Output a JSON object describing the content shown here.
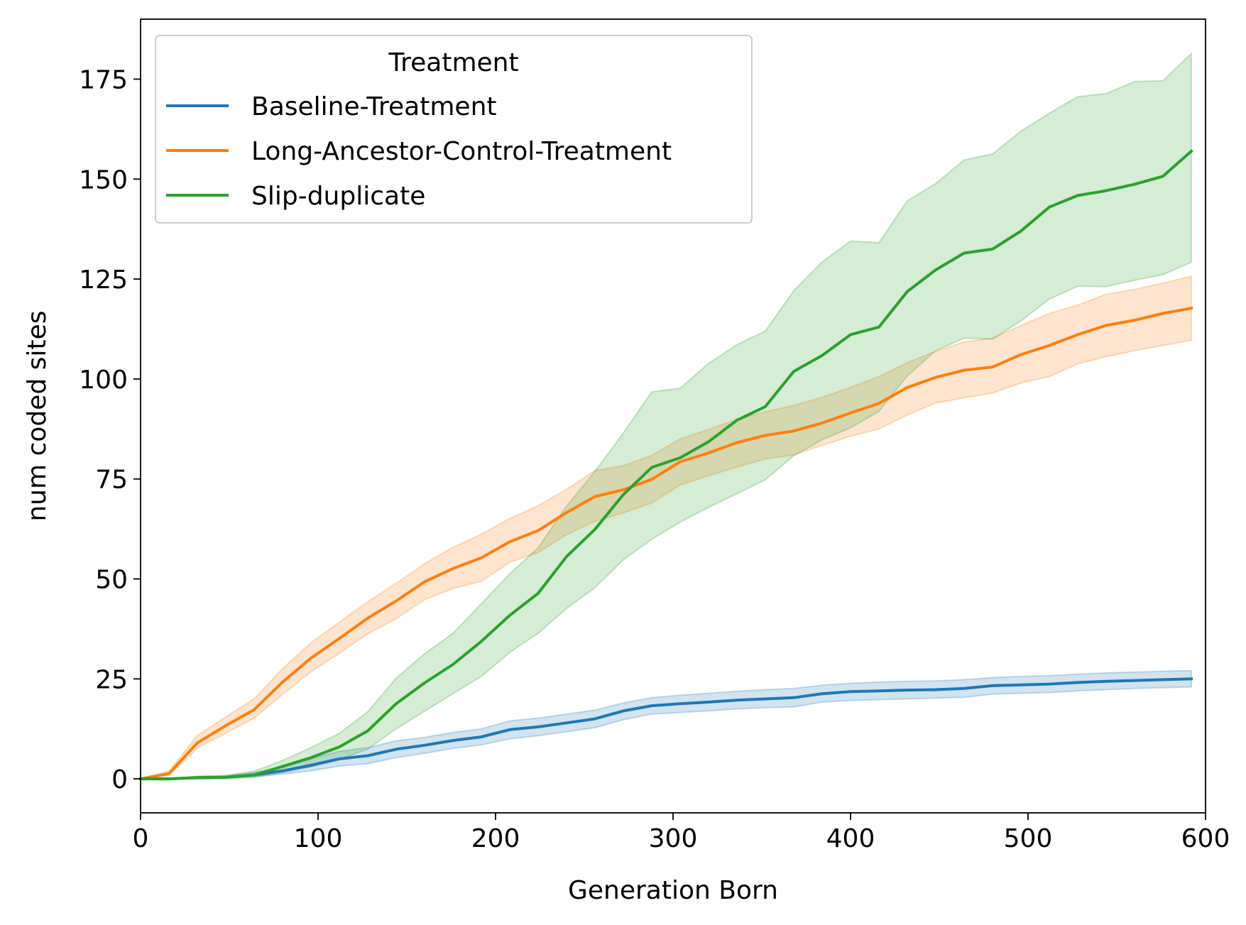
{
  "chart_data": {
    "type": "line",
    "xlabel": "Generation Born",
    "ylabel": "num coded sites",
    "xlim": [
      0,
      600
    ],
    "ylim": [
      -8.5,
      190
    ],
    "xticks": [
      0,
      100,
      200,
      300,
      400,
      500,
      600
    ],
    "yticks": [
      0,
      25,
      50,
      75,
      100,
      125,
      150,
      175
    ],
    "grid": false,
    "legend": {
      "title": "Treatment",
      "position": "top-left"
    },
    "x": [
      0,
      16,
      32,
      48,
      64,
      80,
      96,
      112,
      128,
      144,
      160,
      176,
      192,
      208,
      224,
      240,
      256,
      272,
      288,
      304,
      320,
      336,
      352,
      368,
      384,
      400,
      416,
      432,
      448,
      464,
      480,
      496,
      512,
      528,
      544,
      560,
      576,
      592
    ],
    "series": [
      {
        "name": "Baseline-Treatment",
        "color": "#1f77b4",
        "values": [
          0,
          0,
          0.3,
          0.4,
          1.0,
          2.0,
          3.4,
          5.0,
          5.8,
          7.4,
          8.4,
          9.6,
          10.5,
          12.3,
          13.0,
          14.0,
          15.0,
          17.0,
          18.3,
          18.8,
          19.2,
          19.7,
          20.0,
          20.3,
          21.3,
          21.8,
          22.0,
          22.2,
          22.3,
          22.6,
          23.3,
          23.5,
          23.7,
          24.1,
          24.4,
          24.6,
          24.8,
          25.0
        ],
        "ci_lower": [
          0,
          0,
          0,
          0.1,
          0.5,
          1.2,
          2.0,
          3.2,
          3.8,
          5.3,
          6.4,
          7.6,
          8.5,
          10.0,
          10.8,
          11.8,
          12.8,
          14.8,
          16.2,
          16.6,
          17.0,
          17.5,
          17.8,
          18.0,
          19.2,
          19.6,
          19.8,
          20.0,
          20.2,
          20.4,
          21.2,
          21.4,
          21.6,
          22.0,
          22.3,
          22.6,
          22.8,
          23.0
        ],
        "ci_upper": [
          0,
          0,
          0.6,
          0.8,
          1.6,
          2.9,
          5.0,
          6.9,
          7.8,
          9.5,
          10.4,
          11.6,
          12.5,
          14.5,
          15.2,
          16.2,
          17.2,
          19.0,
          20.3,
          20.9,
          21.4,
          21.9,
          22.3,
          22.6,
          23.4,
          23.9,
          24.2,
          24.4,
          24.5,
          24.8,
          25.3,
          25.6,
          25.8,
          26.2,
          26.5,
          26.7,
          26.9,
          27.1
        ]
      },
      {
        "name": "Long-Ancestor-Control-Treatment",
        "color": "#ff7f0e",
        "values": [
          0,
          1.3,
          9.0,
          13.3,
          17.3,
          24.2,
          30.2,
          35.1,
          40.2,
          44.5,
          49.3,
          52.6,
          55.3,
          59.3,
          62.1,
          66.6,
          70.6,
          72.3,
          74.9,
          79.3,
          81.5,
          84.1,
          85.9,
          87.0,
          89.0,
          91.5,
          93.9,
          97.9,
          100.4,
          102.2,
          103.0,
          106.1,
          108.4,
          111.1,
          113.4,
          114.7,
          116.4,
          117.7
        ],
        "ci_lower": [
          0,
          0.8,
          7.7,
          11.4,
          15.2,
          21.1,
          26.8,
          31.4,
          36.3,
          40.0,
          44.8,
          47.6,
          49.4,
          54.2,
          56.6,
          61.1,
          64.4,
          66.5,
          69.0,
          73.5,
          75.8,
          78.0,
          80.0,
          81.0,
          83.4,
          85.7,
          87.5,
          91.0,
          94.0,
          95.3,
          96.5,
          99.0,
          100.6,
          103.8,
          105.6,
          107.1,
          108.4,
          109.7
        ],
        "ci_upper": [
          0,
          1.9,
          10.8,
          15.5,
          20.0,
          27.6,
          34.0,
          39.2,
          44.3,
          48.9,
          53.8,
          57.9,
          61.2,
          65.1,
          68.3,
          72.4,
          77.1,
          78.3,
          80.9,
          85.0,
          87.4,
          89.9,
          91.8,
          93.4,
          95.4,
          97.9,
          100.6,
          104.1,
          106.9,
          109.3,
          110.2,
          113.4,
          116.4,
          118.5,
          121.2,
          122.4,
          124.0,
          125.7
        ]
      },
      {
        "name": "Slip-duplicate",
        "color": "#2ca02c",
        "values": [
          0,
          0,
          0.3,
          0.4,
          1.0,
          3.1,
          5.3,
          8.0,
          12.0,
          18.8,
          24.0,
          28.6,
          34.4,
          40.9,
          46.4,
          55.6,
          62.4,
          71.1,
          77.9,
          80.3,
          84.3,
          89.7,
          93.1,
          101.9,
          105.9,
          111.1,
          113.0,
          121.9,
          127.3,
          131.5,
          132.5,
          137.0,
          143.0,
          145.9,
          147.1,
          148.7,
          150.7,
          157.0
        ],
        "ci_lower": [
          0,
          0,
          0,
          0.1,
          0.4,
          1.6,
          3.0,
          4.9,
          7.4,
          12.5,
          16.9,
          21.3,
          25.6,
          31.6,
          36.4,
          42.6,
          47.8,
          54.8,
          59.9,
          64.2,
          67.9,
          71.3,
          74.8,
          80.8,
          84.8,
          87.8,
          91.9,
          100.8,
          107.1,
          110.2,
          110.0,
          114.5,
          120.0,
          123.2,
          123.1,
          124.7,
          126.1,
          129.2
        ],
        "ci_upper": [
          0,
          0,
          0.6,
          0.8,
          1.9,
          4.6,
          7.8,
          11.4,
          16.8,
          25.2,
          31.3,
          36.4,
          43.8,
          51.3,
          57.8,
          68.2,
          76.9,
          86.5,
          96.8,
          97.7,
          103.9,
          108.6,
          112.0,
          122.1,
          129.3,
          134.5,
          134.1,
          144.6,
          148.9,
          154.8,
          156.3,
          162.0,
          166.5,
          170.6,
          171.4,
          174.4,
          174.6,
          181.4
        ]
      }
    ]
  }
}
